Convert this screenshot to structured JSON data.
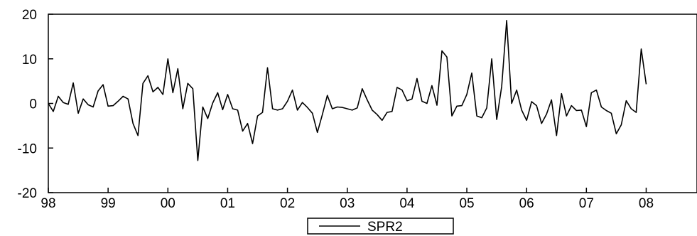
{
  "chart_data": {
    "type": "line",
    "title": "",
    "xlabel": "",
    "ylabel": "",
    "ylim": [
      -20,
      20
    ],
    "yticks": [
      -20,
      -10,
      0,
      10,
      20
    ],
    "xlim": [
      1998.0,
      2008.85
    ],
    "xticks": [
      {
        "value": 1998,
        "label": "98"
      },
      {
        "value": 1999,
        "label": "99"
      },
      {
        "value": 2000,
        "label": "00"
      },
      {
        "value": 2001,
        "label": "01"
      },
      {
        "value": 2002,
        "label": "02"
      },
      {
        "value": 2003,
        "label": "03"
      },
      {
        "value": 2004,
        "label": "04"
      },
      {
        "value": 2005,
        "label": "05"
      },
      {
        "value": 2006,
        "label": "06"
      },
      {
        "value": 2007,
        "label": "07"
      },
      {
        "value": 2008,
        "label": "08"
      }
    ],
    "legend": {
      "position": "bottom-center"
    },
    "grid": false,
    "colors": {
      "line": "#000000",
      "axis": "#000000",
      "background": "#ffffff"
    },
    "series": [
      {
        "name": "SPR2",
        "start": 1998.0,
        "step": 0.0833333,
        "values": [
          0.0,
          -1.8,
          1.6,
          0.2,
          -0.2,
          4.6,
          -2.2,
          1.0,
          -0.3,
          -0.8,
          2.8,
          4.2,
          -0.6,
          -0.5,
          0.5,
          1.6,
          1.0,
          -4.5,
          -7.2,
          4.5,
          6.2,
          2.6,
          3.6,
          2.0,
          10.0,
          2.4,
          7.8,
          -1.2,
          4.5,
          3.3,
          -12.8,
          -0.8,
          -3.4,
          0.1,
          2.4,
          -1.4,
          2.0,
          -1.2,
          -1.5,
          -6.2,
          -4.5,
          -9.0,
          -2.8,
          -2.0,
          8.0,
          -1.2,
          -1.5,
          -1.2,
          0.5,
          3.0,
          -1.5,
          0.2,
          -0.9,
          -2.2,
          -6.5,
          -2.5,
          1.8,
          -1.2,
          -0.8,
          -0.9,
          -1.2,
          -1.5,
          -1.0,
          3.3,
          0.8,
          -1.5,
          -2.5,
          -3.8,
          -2.0,
          -1.8,
          3.6,
          3.0,
          0.6,
          1.0,
          5.6,
          0.5,
          0.0,
          4.0,
          -0.4,
          11.8,
          10.4,
          -2.8,
          -0.6,
          -0.5,
          2.0,
          6.8,
          -2.8,
          -3.2,
          -1.0,
          10.0,
          -3.6,
          3.8,
          18.6,
          0.0,
          3.0,
          -1.5,
          -3.8,
          0.4,
          -0.5,
          -4.5,
          -2.4,
          0.8,
          -7.2,
          2.2,
          -2.8,
          -0.5,
          -1.6,
          -1.5,
          -5.2,
          2.4,
          3.0,
          -0.8,
          -1.6,
          -2.2,
          -6.8,
          -4.8,
          0.6,
          -1.2,
          -2.0,
          12.2,
          4.3
        ]
      }
    ]
  }
}
